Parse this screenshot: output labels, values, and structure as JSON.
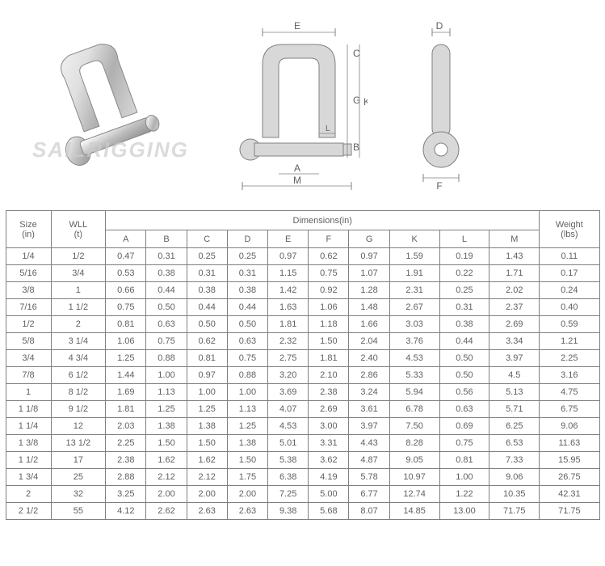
{
  "watermark": "SAILRIGGING",
  "diagram": {
    "labels": [
      "A",
      "B",
      "C",
      "D",
      "E",
      "F",
      "G",
      "K",
      "L",
      "M"
    ],
    "line_color": "#808080",
    "fill_color": "#d3d3d3",
    "text_color": "#606060",
    "font_size": 12
  },
  "table": {
    "columns": {
      "size": "Size\n(in)",
      "wll": "WLL\n(t)",
      "dimensions": "Dimensions(in)",
      "dim_cols": [
        "A",
        "B",
        "C",
        "D",
        "E",
        "F",
        "G",
        "K",
        "L",
        "M"
      ],
      "weight": "Weight\n(lbs)"
    },
    "rows": [
      [
        "1/4",
        "1/2",
        "0.47",
        "0.31",
        "0.25",
        "0.25",
        "0.97",
        "0.62",
        "0.97",
        "1.59",
        "0.19",
        "1.43",
        "0.11"
      ],
      [
        "5/16",
        "3/4",
        "0.53",
        "0.38",
        "0.31",
        "0.31",
        "1.15",
        "0.75",
        "1.07",
        "1.91",
        "0.22",
        "1.71",
        "0.17"
      ],
      [
        "3/8",
        "1",
        "0.66",
        "0.44",
        "0.38",
        "0.38",
        "1.42",
        "0.92",
        "1.28",
        "2.31",
        "0.25",
        "2.02",
        "0.24"
      ],
      [
        "7/16",
        "1 1/2",
        "0.75",
        "0.50",
        "0.44",
        "0.44",
        "1.63",
        "1.06",
        "1.48",
        "2.67",
        "0.31",
        "2.37",
        "0.40"
      ],
      [
        "1/2",
        "2",
        "0.81",
        "0.63",
        "0.50",
        "0.50",
        "1.81",
        "1.18",
        "1.66",
        "3.03",
        "0.38",
        "2.69",
        "0.59"
      ],
      [
        "5/8",
        "3 1/4",
        "1.06",
        "0.75",
        "0.62",
        "0.63",
        "2.32",
        "1.50",
        "2.04",
        "3.76",
        "0.44",
        "3.34",
        "1.21"
      ],
      [
        "3/4",
        "4 3/4",
        "1.25",
        "0.88",
        "0.81",
        "0.75",
        "2.75",
        "1.81",
        "2.40",
        "4.53",
        "0.50",
        "3.97",
        "2.25"
      ],
      [
        "7/8",
        "6 1/2",
        "1.44",
        "1.00",
        "0.97",
        "0.88",
        "3.20",
        "2.10",
        "2.86",
        "5.33",
        "0.50",
        "4.5",
        "3.16"
      ],
      [
        "1",
        "8 1/2",
        "1.69",
        "1.13",
        "1.00",
        "1.00",
        "3.69",
        "2.38",
        "3.24",
        "5.94",
        "0.56",
        "5.13",
        "4.75"
      ],
      [
        "1 1/8",
        "9 1/2",
        "1.81",
        "1.25",
        "1.25",
        "1.13",
        "4.07",
        "2.69",
        "3.61",
        "6.78",
        "0.63",
        "5.71",
        "6.75"
      ],
      [
        "1 1/4",
        "12",
        "2.03",
        "1.38",
        "1.38",
        "1.25",
        "4.53",
        "3.00",
        "3.97",
        "7.50",
        "0.69",
        "6.25",
        "9.06"
      ],
      [
        "1 3/8",
        "13 1/2",
        "2.25",
        "1.50",
        "1.50",
        "1.38",
        "5.01",
        "3.31",
        "4.43",
        "8.28",
        "0.75",
        "6.53",
        "11.63"
      ],
      [
        "1 1/2",
        "17",
        "2.38",
        "1.62",
        "1.62",
        "1.50",
        "5.38",
        "3.62",
        "4.87",
        "9.05",
        "0.81",
        "7.33",
        "15.95"
      ],
      [
        "1 3/4",
        "25",
        "2.88",
        "2.12",
        "2.12",
        "1.75",
        "6.38",
        "4.19",
        "5.78",
        "10.97",
        "1.00",
        "9.06",
        "26.75"
      ],
      [
        "2",
        "32",
        "3.25",
        "2.00",
        "2.00",
        "2.00",
        "7.25",
        "5.00",
        "6.77",
        "12.74",
        "1.22",
        "10.35",
        "42.31"
      ],
      [
        "2 1/2",
        "55",
        "4.12",
        "2.62",
        "2.63",
        "2.63",
        "9.38",
        "5.68",
        "8.07",
        "14.85",
        "13.00",
        "71.75",
        "71.75"
      ]
    ],
    "border_color": "#808080",
    "text_color": "#606060",
    "font_size": 11
  }
}
